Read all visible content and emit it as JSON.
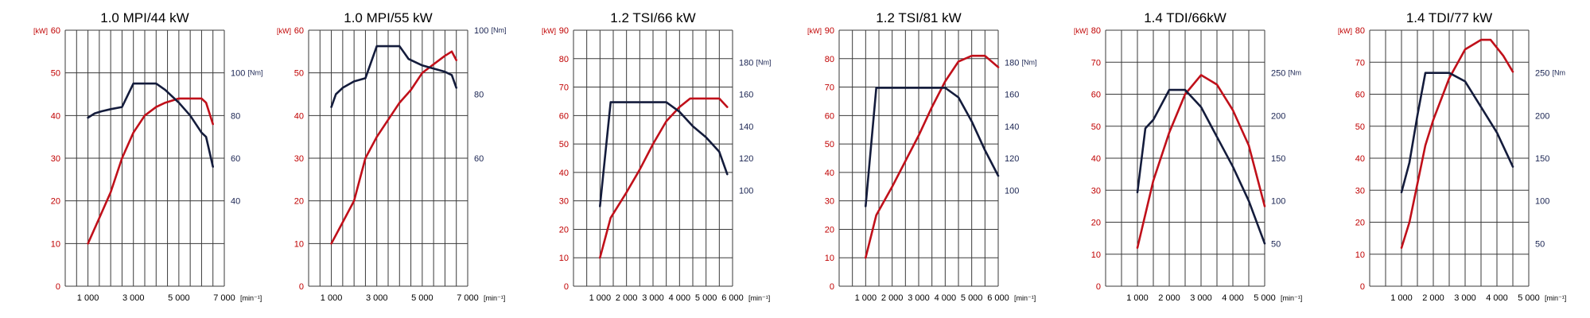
{
  "colors": {
    "power": "#c0101a",
    "torque": "#141c3c",
    "grid": "#3a3a3a"
  },
  "chart_data": [
    {
      "type": "line",
      "title": "1.0 MPI/44 kW",
      "x_unit": "[min⁻¹]",
      "y_left_unit": "[kW]",
      "y_right_unit": "[Nm]",
      "xlim": [
        0,
        7000
      ],
      "ylim": [
        0,
        60
      ],
      "y_right_map": [
        0,
        60,
        120
      ],
      "x_ticks": [
        1000,
        3000,
        5000,
        7000
      ],
      "x_tick_labels": [
        "1 000",
        "3 000",
        "5 000",
        "7 000"
      ],
      "y_left_ticks": [
        0,
        10,
        20,
        30,
        40,
        50,
        60
      ],
      "y_right_ticks": [
        40,
        60,
        80,
        100
      ],
      "series": [
        {
          "key": "power",
          "x": [
            1000,
            1500,
            2000,
            2500,
            3000,
            3500,
            4000,
            4400,
            5000,
            5500,
            6000,
            6200,
            6500
          ],
          "y": [
            10,
            16,
            22,
            30,
            36,
            40,
            42,
            43,
            44,
            44,
            44,
            43,
            38
          ]
        },
        {
          "key": "torque",
          "x": [
            1000,
            1300,
            1600,
            2000,
            2500,
            3000,
            3500,
            4000,
            4400,
            5000,
            5500,
            6000,
            6200,
            6500
          ],
          "y": [
            79,
            81,
            82,
            83,
            84,
            95,
            95,
            95,
            92,
            86,
            80,
            72,
            70,
            56
          ]
        }
      ]
    },
    {
      "type": "line",
      "title": "1.0 MPI/55 kW",
      "x_unit": "[min⁻¹]",
      "y_left_unit": "[kW]",
      "y_right_unit": "[Nm]",
      "xlim": [
        0,
        7000
      ],
      "ylim": [
        0,
        60
      ],
      "y_right_map": [
        20,
        60,
        100
      ],
      "x_ticks": [
        1000,
        3000,
        5000,
        7000
      ],
      "x_tick_labels": [
        "1 000",
        "3 000",
        "5 000",
        "7 000"
      ],
      "y_left_ticks": [
        0,
        10,
        20,
        30,
        40,
        50,
        60
      ],
      "y_right_ticks": [
        60,
        80,
        100
      ],
      "series": [
        {
          "key": "power",
          "x": [
            1000,
            1500,
            2000,
            2500,
            3000,
            3500,
            4000,
            4500,
            5000,
            5500,
            6000,
            6300,
            6500
          ],
          "y": [
            10,
            15,
            20,
            30,
            35,
            39,
            43,
            46,
            50,
            52,
            54,
            55,
            53
          ]
        },
        {
          "key": "torque",
          "x": [
            1000,
            1200,
            1500,
            2000,
            2500,
            3000,
            3500,
            4000,
            4400,
            5000,
            5500,
            6000,
            6300,
            6500
          ],
          "y": [
            76,
            80,
            82,
            84,
            85,
            95,
            95,
            95,
            91,
            89,
            88,
            87,
            86,
            82
          ]
        }
      ]
    },
    {
      "type": "line",
      "title": "1.2 TSI/66 kW",
      "x_unit": "[min⁻¹]",
      "y_left_unit": "[kW]",
      "y_right_unit": "[Nm]",
      "xlim": [
        0,
        6000
      ],
      "ylim": [
        0,
        90
      ],
      "y_right_map": [
        40,
        120,
        200
      ],
      "x_ticks": [
        1000,
        2000,
        3000,
        4000,
        5000,
        6000
      ],
      "x_tick_labels": [
        "1 000",
        "2 000",
        "3 000",
        "4 000",
        "5 000",
        "6 000"
      ],
      "y_left_ticks": [
        0,
        10,
        20,
        30,
        40,
        50,
        60,
        70,
        80,
        90
      ],
      "y_right_ticks": [
        100,
        120,
        140,
        160,
        180
      ],
      "series": [
        {
          "key": "power",
          "x": [
            1000,
            1400,
            2000,
            2500,
            3000,
            3500,
            4000,
            4400,
            5000,
            5500,
            5800
          ],
          "y": [
            10,
            24,
            33,
            41,
            50,
            58,
            63,
            66,
            66,
            66,
            63
          ]
        },
        {
          "key": "torque",
          "x": [
            1000,
            1400,
            2000,
            2500,
            3000,
            3500,
            4000,
            4500,
            5000,
            5500,
            5800
          ],
          "y": [
            90,
            155,
            155,
            155,
            155,
            155,
            149,
            140,
            133,
            124,
            110
          ]
        }
      ]
    },
    {
      "type": "line",
      "title": "1.2 TSI/81 kW",
      "x_unit": "[min⁻¹]",
      "y_left_unit": "[kW]",
      "y_right_unit": "[Nm]",
      "xlim": [
        0,
        6000
      ],
      "ylim": [
        0,
        90
      ],
      "y_right_map": [
        40,
        120,
        200
      ],
      "x_ticks": [
        1000,
        2000,
        3000,
        4000,
        5000,
        6000
      ],
      "x_tick_labels": [
        "1 000",
        "2 000",
        "3 000",
        "4 000",
        "5 000",
        "6 000"
      ],
      "y_left_ticks": [
        0,
        10,
        20,
        30,
        40,
        50,
        60,
        70,
        80,
        90
      ],
      "y_right_ticks": [
        100,
        120,
        140,
        160,
        180
      ],
      "series": [
        {
          "key": "power",
          "x": [
            1000,
            1400,
            2000,
            2500,
            3000,
            3500,
            4000,
            4500,
            5000,
            5500,
            6000
          ],
          "y": [
            10,
            25,
            35,
            44,
            53,
            63,
            72,
            79,
            81,
            81,
            77
          ]
        },
        {
          "key": "torque",
          "x": [
            1000,
            1400,
            2000,
            2500,
            3000,
            3500,
            4000,
            4500,
            5000,
            5500,
            6000
          ],
          "y": [
            90,
            164,
            164,
            164,
            164,
            164,
            164,
            158,
            143,
            125,
            109
          ]
        }
      ]
    },
    {
      "type": "line",
      "title": "1.4 TDI/66kW",
      "x_unit": "[min⁻¹]",
      "y_left_unit": "[kW]",
      "y_right_unit": "[Nm",
      "xlim": [
        0,
        5000
      ],
      "ylim": [
        0,
        80
      ],
      "y_right_map": [
        0,
        50,
        300
      ],
      "x_ticks": [
        1000,
        2000,
        3000,
        4000,
        5000
      ],
      "x_tick_labels": [
        "1 000",
        "2 000",
        "3 000",
        "4 000",
        "5 000"
      ],
      "y_left_ticks": [
        0,
        10,
        20,
        30,
        40,
        50,
        60,
        70,
        80
      ],
      "y_right_ticks": [
        50,
        100,
        150,
        200,
        250
      ],
      "series": [
        {
          "key": "power",
          "x": [
            1000,
            1500,
            2000,
            2500,
            3000,
            3500,
            4000,
            4500,
            5000
          ],
          "y": [
            12,
            33,
            48,
            60,
            66,
            63,
            55,
            44,
            25
          ]
        },
        {
          "key": "torque",
          "x": [
            1000,
            1250,
            1500,
            2000,
            2500,
            3000,
            3500,
            4000,
            4500,
            5000
          ],
          "y": [
            110,
            185,
            195,
            230,
            230,
            210,
            175,
            140,
            100,
            50
          ]
        }
      ]
    },
    {
      "type": "line",
      "title": "1.4 TDI/77 kW",
      "x_unit": "[min⁻¹]",
      "y_left_unit": "[kW]",
      "y_right_unit": "[Nm",
      "xlim": [
        0,
        5000
      ],
      "ylim": [
        0,
        80
      ],
      "y_right_map": [
        0,
        50,
        300
      ],
      "x_ticks": [
        1000,
        2000,
        3000,
        4000,
        5000
      ],
      "x_tick_labels": [
        "1 000",
        "2 000",
        "3 000",
        "4 000",
        "5 000"
      ],
      "y_left_ticks": [
        0,
        10,
        20,
        30,
        40,
        50,
        60,
        70,
        80
      ],
      "y_right_ticks": [
        50,
        100,
        150,
        200,
        250
      ],
      "series": [
        {
          "key": "power",
          "x": [
            1000,
            1250,
            1500,
            1750,
            2000,
            2500,
            3000,
            3500,
            3800,
            4200,
            4500
          ],
          "y": [
            12,
            20,
            32,
            44,
            52,
            65,
            74,
            77,
            77,
            72,
            67
          ]
        },
        {
          "key": "torque",
          "x": [
            1000,
            1250,
            1500,
            1750,
            2000,
            2500,
            3000,
            3500,
            4000,
            4500
          ],
          "y": [
            110,
            145,
            200,
            250,
            250,
            250,
            240,
            210,
            180,
            140
          ]
        }
      ]
    }
  ]
}
